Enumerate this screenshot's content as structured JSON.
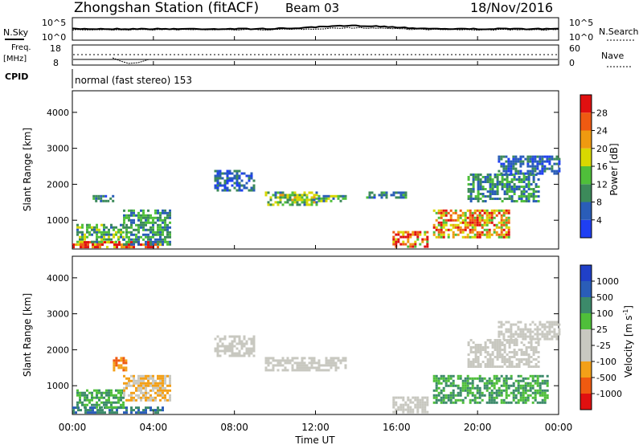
{
  "header": {
    "title": "Zhongshan Station (fitACF)",
    "beam": "Beam 03",
    "date": "18/Nov/2016"
  },
  "top_panels": {
    "nsky_label": "N.Sky",
    "nsearch_label": "N.Search",
    "nsky_ticks": [
      "10^5",
      "10^0"
    ],
    "nsearch_ticks": [
      "10^5",
      "10^0"
    ],
    "freq_label": "Freq.",
    "freq_unit": "[MHz]",
    "freq_ticks": [
      "18",
      "8"
    ],
    "nave_label": "Nave",
    "nave_ticks": [
      "60",
      "0"
    ],
    "cpid_label": "CPID",
    "cpid_text": "normal (fast stereo) 153"
  },
  "colors": {
    "power": [
      "#1f3ff2",
      "#2a5db8",
      "#3c8a5a",
      "#4fbf3a",
      "#d8d800",
      "#ef9a10",
      "#ee5a12",
      "#e01010"
    ],
    "velocity": [
      "#e01010",
      "#ef5a10",
      "#f3a018",
      "#c8c8c0",
      "#c8c8c0",
      "#4fbf3a",
      "#3c8a6a",
      "#2a5db8",
      "#2040c8"
    ]
  },
  "chart_data": [
    {
      "type": "heatmap",
      "panel": "power",
      "ylabel": "Slant Range [km]",
      "yticks": [
        "1000",
        "2000",
        "3000",
        "4000"
      ],
      "ylim": [
        200,
        4600
      ],
      "colorbar_label": "Power [dB]",
      "colorbar_ticks": [
        "4",
        "8",
        "12",
        "16",
        "20",
        "24",
        "28"
      ],
      "clim": [
        0,
        32
      ],
      "regions": [
        {
          "t": [
            0.0,
            4.5
          ],
          "r": [
            220,
            420
          ],
          "level": 28
        },
        {
          "t": [
            0.2,
            2.5
          ],
          "r": [
            420,
            900
          ],
          "level": 12
        },
        {
          "t": [
            2.5,
            4.8
          ],
          "r": [
            300,
            1300
          ],
          "level": 10
        },
        {
          "t": [
            1.0,
            2.0
          ],
          "r": [
            1500,
            1700
          ],
          "level": 8
        },
        {
          "t": [
            7.0,
            9.0
          ],
          "r": [
            1800,
            2400
          ],
          "level": 6
        },
        {
          "t": [
            9.5,
            12.0
          ],
          "r": [
            1400,
            1800
          ],
          "level": 14
        },
        {
          "t": [
            12.0,
            13.5
          ],
          "r": [
            1500,
            1700
          ],
          "level": 12
        },
        {
          "t": [
            14.5,
            16.5
          ],
          "r": [
            1600,
            1800
          ],
          "level": 8
        },
        {
          "t": [
            15.8,
            17.5
          ],
          "r": [
            250,
            700
          ],
          "level": 24
        },
        {
          "t": [
            17.8,
            21.5
          ],
          "r": [
            500,
            1300
          ],
          "level": 22
        },
        {
          "t": [
            19.5,
            23.0
          ],
          "r": [
            1500,
            2300
          ],
          "level": 10
        },
        {
          "t": [
            21.0,
            24.0
          ],
          "r": [
            2300,
            2800
          ],
          "level": 6
        }
      ]
    },
    {
      "type": "heatmap",
      "panel": "velocity",
      "ylabel": "Slant Range [km]",
      "yticks": [
        "1000",
        "2000",
        "3000",
        "4000"
      ],
      "ylim": [
        200,
        4600
      ],
      "colorbar_label": "Velocity [m s^-1]",
      "colorbar_ticks": [
        "-1000",
        "-500",
        "-100",
        "-25",
        "25",
        "100",
        "500",
        "1000"
      ],
      "xlabel": "Time UT",
      "xticks": [
        "00:00",
        "04:00",
        "08:00",
        "12:00",
        "16:00",
        "20:00",
        "00:00"
      ],
      "xlim": [
        0,
        24
      ],
      "regions": [
        {
          "t": [
            0.0,
            4.5
          ],
          "r": [
            220,
            420
          ],
          "level": 500
        },
        {
          "t": [
            0.2,
            2.5
          ],
          "r": [
            420,
            900
          ],
          "level": 100
        },
        {
          "t": [
            2.5,
            4.8
          ],
          "r": [
            600,
            1300
          ],
          "level": -100
        },
        {
          "t": [
            2.0,
            2.6
          ],
          "r": [
            1400,
            1800
          ],
          "level": -500
        },
        {
          "t": [
            7.0,
            9.0
          ],
          "r": [
            1800,
            2400
          ],
          "level": 0
        },
        {
          "t": [
            9.5,
            13.5
          ],
          "r": [
            1400,
            1800
          ],
          "level": 0
        },
        {
          "t": [
            15.8,
            17.5
          ],
          "r": [
            250,
            700
          ],
          "level": 0
        },
        {
          "t": [
            17.8,
            23.5
          ],
          "r": [
            500,
            1300
          ],
          "level": 100
        },
        {
          "t": [
            19.5,
            23.0
          ],
          "r": [
            1500,
            2300
          ],
          "level": 0
        },
        {
          "t": [
            21.0,
            24.0
          ],
          "r": [
            2300,
            2800
          ],
          "level": 0
        }
      ]
    }
  ]
}
